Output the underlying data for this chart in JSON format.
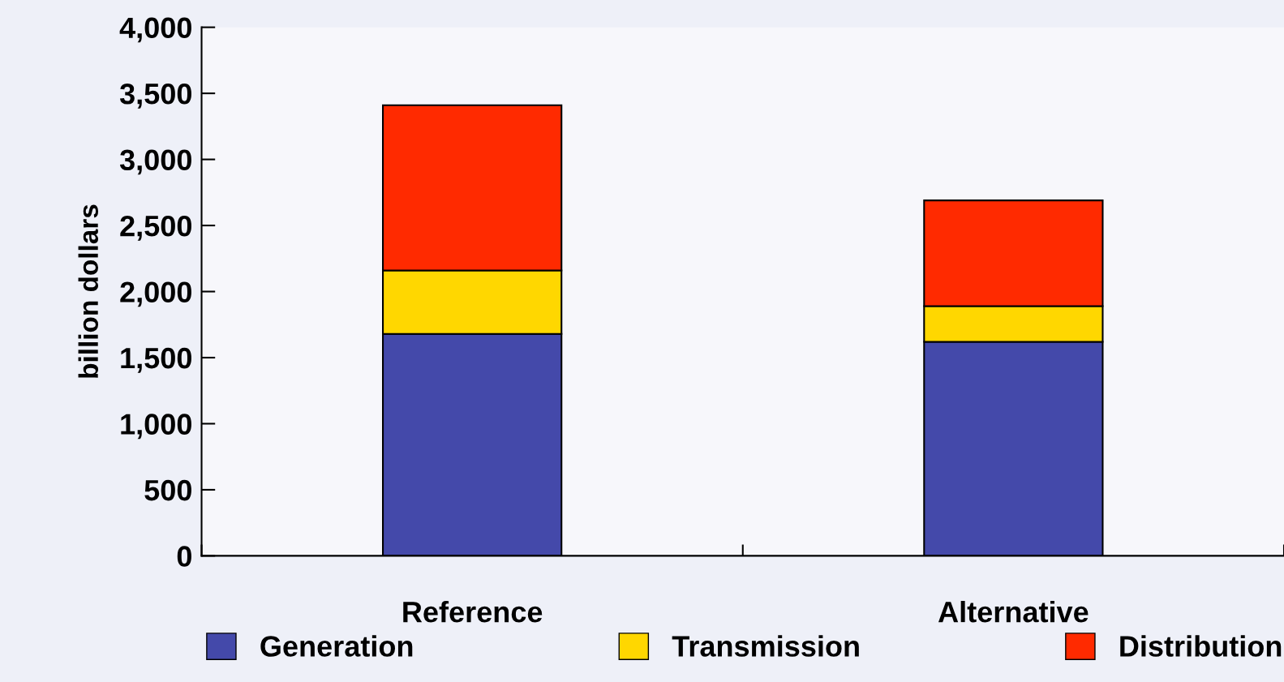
{
  "chart_data": {
    "type": "bar",
    "stacked": true,
    "ylabel": "billion dollars",
    "categories": [
      "Reference",
      "Alternative"
    ],
    "series": [
      {
        "name": "Generation",
        "color": "#4449aa",
        "values": [
          1680,
          1620
        ]
      },
      {
        "name": "Transmission",
        "color": "#ffd700",
        "values": [
          480,
          270
        ]
      },
      {
        "name": "Distribution",
        "color": "#ff2a00",
        "values": [
          1250,
          800
        ]
      }
    ],
    "ylim": [
      0,
      4000
    ],
    "yticks": [
      {
        "value": 0,
        "label": "0"
      },
      {
        "value": 500,
        "label": "500"
      },
      {
        "value": 1000,
        "label": "1,000"
      },
      {
        "value": 1500,
        "label": "1,500"
      },
      {
        "value": 2000,
        "label": "2,000"
      },
      {
        "value": 2500,
        "label": "2,500"
      },
      {
        "value": 3000,
        "label": "3,000"
      },
      {
        "value": 3500,
        "label": "3,500"
      },
      {
        "value": 4000,
        "label": "4,000"
      }
    ],
    "grid": false,
    "legend": "bottom"
  }
}
